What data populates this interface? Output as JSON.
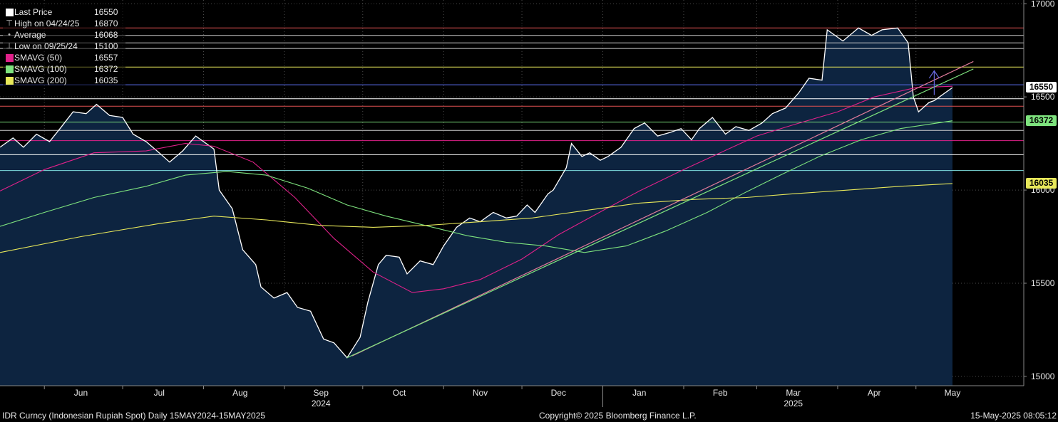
{
  "legend": {
    "items": [
      {
        "label": "Last Price",
        "value": "16550",
        "color": "#ffffff",
        "symbol": "square"
      },
      {
        "label": "High on 04/24/25",
        "value": "16870",
        "color": "#bbbbbb",
        "symbol": "high"
      },
      {
        "label": "Average",
        "value": "16068",
        "color": "#bbbbbb",
        "symbol": "avg"
      },
      {
        "label": "Low on 09/25/24",
        "value": "15100",
        "color": "#bbbbbb",
        "symbol": "low"
      },
      {
        "label": "SMAVG (50)",
        "value": "16557",
        "color": "#e0218a",
        "symbol": "square"
      },
      {
        "label": "SMAVG (100)",
        "value": "16372",
        "color": "#7ee37e",
        "symbol": "square"
      },
      {
        "label": "SMAVG (200)",
        "value": "16035",
        "color": "#e8e85a",
        "symbol": "square"
      }
    ]
  },
  "badges": [
    {
      "value": "16550",
      "bg": "#ffffff",
      "fg": "#000000"
    },
    {
      "value": "16372",
      "bg": "#7ee37e",
      "fg": "#000000"
    },
    {
      "value": "16035",
      "bg": "#e8e85a",
      "fg": "#000000"
    }
  ],
  "footer": {
    "left": "IDR Curncy (Indonesian Rupiah Spot)  Daily 15MAY2024-15MAY2025",
    "center": "Copyright© 2025 Bloomberg Finance L.P.",
    "right": "15-May-2025 08:05:12"
  },
  "chart_data": {
    "type": "area",
    "ylim": [
      14950,
      17020
    ],
    "y_ticks": [
      15000,
      15500,
      16000,
      16500,
      17000
    ],
    "x_range": [
      "2024-05-15",
      "2025-05-15"
    ],
    "month_labels": [
      {
        "label": "Jun",
        "date": "2024-06-15"
      },
      {
        "label": "Jul",
        "date": "2024-07-15"
      },
      {
        "label": "Aug",
        "date": "2024-08-15"
      },
      {
        "label": "Sep",
        "date": "2024-09-15"
      },
      {
        "label": "Oct",
        "date": "2024-10-15"
      },
      {
        "label": "Nov",
        "date": "2024-11-15"
      },
      {
        "label": "Dec",
        "date": "2024-12-15"
      },
      {
        "label": "Jan",
        "date": "2025-01-15"
      },
      {
        "label": "Feb",
        "date": "2025-02-15"
      },
      {
        "label": "Mar",
        "date": "2025-03-15"
      },
      {
        "label": "Apr",
        "date": "2025-04-15"
      },
      {
        "label": "May",
        "date": "2025-05-15"
      }
    ],
    "year_labels": [
      {
        "label": "2024",
        "date": "2024-09-15"
      },
      {
        "label": "2025",
        "date": "2025-03-15"
      }
    ],
    "grid": true,
    "series": [
      {
        "name": "Last Price",
        "color": "#ffffff",
        "points": [
          [
            "2024-05-15",
            16230
          ],
          [
            "2024-05-20",
            16280
          ],
          [
            "2024-05-24",
            16230
          ],
          [
            "2024-05-29",
            16300
          ],
          [
            "2024-06-03",
            16260
          ],
          [
            "2024-06-07",
            16330
          ],
          [
            "2024-06-12",
            16420
          ],
          [
            "2024-06-17",
            16410
          ],
          [
            "2024-06-21",
            16460
          ],
          [
            "2024-06-26",
            16400
          ],
          [
            "2024-07-01",
            16390
          ],
          [
            "2024-07-05",
            16300
          ],
          [
            "2024-07-10",
            16260
          ],
          [
            "2024-07-15",
            16200
          ],
          [
            "2024-07-19",
            16150
          ],
          [
            "2024-07-24",
            16210
          ],
          [
            "2024-07-29",
            16290
          ],
          [
            "2024-08-02",
            16250
          ],
          [
            "2024-08-05",
            16220
          ],
          [
            "2024-08-07",
            16000
          ],
          [
            "2024-08-12",
            15900
          ],
          [
            "2024-08-16",
            15680
          ],
          [
            "2024-08-21",
            15600
          ],
          [
            "2024-08-23",
            15480
          ],
          [
            "2024-08-28",
            15420
          ],
          [
            "2024-09-02",
            15450
          ],
          [
            "2024-09-06",
            15370
          ],
          [
            "2024-09-11",
            15350
          ],
          [
            "2024-09-16",
            15200
          ],
          [
            "2024-09-20",
            15180
          ],
          [
            "2024-09-25",
            15100
          ],
          [
            "2024-09-30",
            15210
          ],
          [
            "2024-10-03",
            15400
          ],
          [
            "2024-10-07",
            15600
          ],
          [
            "2024-10-10",
            15650
          ],
          [
            "2024-10-15",
            15640
          ],
          [
            "2024-10-18",
            15550
          ],
          [
            "2024-10-23",
            15620
          ],
          [
            "2024-10-28",
            15600
          ],
          [
            "2024-11-01",
            15700
          ],
          [
            "2024-11-06",
            15800
          ],
          [
            "2024-11-11",
            15850
          ],
          [
            "2024-11-15",
            15830
          ],
          [
            "2024-11-20",
            15880
          ],
          [
            "2024-11-25",
            15850
          ],
          [
            "2024-11-29",
            15860
          ],
          [
            "2024-12-03",
            15920
          ],
          [
            "2024-12-06",
            15880
          ],
          [
            "2024-12-11",
            15980
          ],
          [
            "2024-12-13",
            16000
          ],
          [
            "2024-12-18",
            16120
          ],
          [
            "2024-12-20",
            16250
          ],
          [
            "2024-12-24",
            16180
          ],
          [
            "2024-12-27",
            16200
          ],
          [
            "2024-12-31",
            16160
          ],
          [
            "2025-01-03",
            16180
          ],
          [
            "2025-01-08",
            16230
          ],
          [
            "2025-01-13",
            16330
          ],
          [
            "2025-01-17",
            16360
          ],
          [
            "2025-01-22",
            16290
          ],
          [
            "2025-01-27",
            16310
          ],
          [
            "2025-01-31",
            16330
          ],
          [
            "2025-02-04",
            16270
          ],
          [
            "2025-02-07",
            16330
          ],
          [
            "2025-02-12",
            16390
          ],
          [
            "2025-02-17",
            16300
          ],
          [
            "2025-02-21",
            16340
          ],
          [
            "2025-02-26",
            16320
          ],
          [
            "2025-03-03",
            16360
          ],
          [
            "2025-03-07",
            16410
          ],
          [
            "2025-03-12",
            16440
          ],
          [
            "2025-03-17",
            16520
          ],
          [
            "2025-03-21",
            16600
          ],
          [
            "2025-03-26",
            16590
          ],
          [
            "2025-03-28",
            16860
          ],
          [
            "2025-04-03",
            16800
          ],
          [
            "2025-04-09",
            16870
          ],
          [
            "2025-04-14",
            16830
          ],
          [
            "2025-04-18",
            16860
          ],
          [
            "2025-04-24",
            16870
          ],
          [
            "2025-04-28",
            16790
          ],
          [
            "2025-04-30",
            16500
          ],
          [
            "2025-05-02",
            16420
          ],
          [
            "2025-05-06",
            16470
          ],
          [
            "2025-05-08",
            16480
          ],
          [
            "2025-05-12",
            16520
          ],
          [
            "2025-05-15",
            16550
          ]
        ]
      },
      {
        "name": "SMAVG (50)",
        "color": "#e0218a",
        "points": [
          [
            "2024-05-15",
            15995
          ],
          [
            "2024-06-01",
            16110
          ],
          [
            "2024-06-20",
            16200
          ],
          [
            "2024-07-10",
            16210
          ],
          [
            "2024-07-25",
            16250
          ],
          [
            "2024-08-05",
            16235
          ],
          [
            "2024-08-20",
            16150
          ],
          [
            "2024-09-05",
            15960
          ],
          [
            "2024-09-20",
            15740
          ],
          [
            "2024-10-05",
            15560
          ],
          [
            "2024-10-20",
            15450
          ],
          [
            "2024-11-01",
            15470
          ],
          [
            "2024-11-15",
            15520
          ],
          [
            "2024-12-01",
            15630
          ],
          [
            "2024-12-15",
            15760
          ],
          [
            "2025-01-01",
            15890
          ],
          [
            "2025-01-15",
            15995
          ],
          [
            "2025-02-01",
            16110
          ],
          [
            "2025-02-15",
            16200
          ],
          [
            "2025-03-01",
            16290
          ],
          [
            "2025-03-15",
            16350
          ],
          [
            "2025-04-01",
            16420
          ],
          [
            "2025-04-15",
            16500
          ],
          [
            "2025-05-01",
            16550
          ],
          [
            "2025-05-15",
            16557
          ]
        ]
      },
      {
        "name": "SMAVG (100)",
        "color": "#7ee37e",
        "points": [
          [
            "2024-05-15",
            15805
          ],
          [
            "2024-06-01",
            15880
          ],
          [
            "2024-06-20",
            15960
          ],
          [
            "2024-07-10",
            16020
          ],
          [
            "2024-07-25",
            16080
          ],
          [
            "2024-08-10",
            16100
          ],
          [
            "2024-08-25",
            16080
          ],
          [
            "2024-09-10",
            16010
          ],
          [
            "2024-09-25",
            15920
          ],
          [
            "2024-10-10",
            15860
          ],
          [
            "2024-10-25",
            15810
          ],
          [
            "2024-11-10",
            15755
          ],
          [
            "2024-11-25",
            15720
          ],
          [
            "2024-12-10",
            15700
          ],
          [
            "2024-12-25",
            15665
          ],
          [
            "2025-01-10",
            15700
          ],
          [
            "2025-01-25",
            15780
          ],
          [
            "2025-02-10",
            15880
          ],
          [
            "2025-02-25",
            15990
          ],
          [
            "2025-03-10",
            16080
          ],
          [
            "2025-03-25",
            16180
          ],
          [
            "2025-04-10",
            16270
          ],
          [
            "2025-04-25",
            16330
          ],
          [
            "2025-05-15",
            16372
          ]
        ]
      },
      {
        "name": "SMAVG (200)",
        "color": "#e8e85a",
        "points": [
          [
            "2024-05-15",
            15665
          ],
          [
            "2024-06-15",
            15750
          ],
          [
            "2024-07-15",
            15820
          ],
          [
            "2024-08-05",
            15860
          ],
          [
            "2024-08-25",
            15840
          ],
          [
            "2024-09-15",
            15810
          ],
          [
            "2024-10-05",
            15800
          ],
          [
            "2024-10-25",
            15810
          ],
          [
            "2024-11-15",
            15830
          ],
          [
            "2024-12-05",
            15850
          ],
          [
            "2024-12-25",
            15890
          ],
          [
            "2025-01-15",
            15930
          ],
          [
            "2025-02-05",
            15950
          ],
          [
            "2025-02-25",
            15960
          ],
          [
            "2025-03-15",
            15980
          ],
          [
            "2025-04-05",
            16000
          ],
          [
            "2025-04-25",
            16020
          ],
          [
            "2025-05-15",
            16035
          ]
        ]
      }
    ],
    "h_lines": [
      {
        "value": 16870,
        "color": "#e05050"
      },
      {
        "value": 16830,
        "color": "#cccccc"
      },
      {
        "value": 16790,
        "color": "#cccccc"
      },
      {
        "value": 16760,
        "color": "#cccccc"
      },
      {
        "value": 16660,
        "color": "#e8e85a"
      },
      {
        "value": 16565,
        "color": "#5a6ef0"
      },
      {
        "value": 16490,
        "color": "#ffffff"
      },
      {
        "value": 16450,
        "color": "#e05050"
      },
      {
        "value": 16365,
        "color": "#7ee37e"
      },
      {
        "value": 16320,
        "color": "#cccccc"
      },
      {
        "value": 16265,
        "color": "#e0218a"
      },
      {
        "value": 16190,
        "color": "#ffffff"
      },
      {
        "value": 16105,
        "color": "#7fe0e0"
      }
    ],
    "trendlines": [
      {
        "color": "#e07a9a",
        "from": [
          "2024-09-27",
          15110
        ],
        "to": [
          "2025-05-23",
          16690
        ]
      },
      {
        "color": "#7ee37e",
        "from": [
          "2024-09-25",
          15100
        ],
        "to": [
          "2025-05-23",
          16650
        ]
      }
    ],
    "arrow_date": "2025-05-08"
  }
}
